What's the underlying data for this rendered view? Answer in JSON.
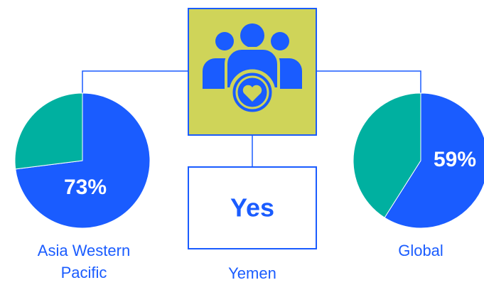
{
  "chart_data": [
    {
      "type": "pie",
      "label": "Asia Western Pacific",
      "values": [
        73,
        27
      ],
      "value_labels": [
        "73%",
        null
      ],
      "colors": [
        "#1a5cff",
        "#00b0a0"
      ]
    },
    {
      "type": "pie",
      "label": "Global",
      "values": [
        59,
        41
      ],
      "value_labels": [
        "59%",
        null
      ],
      "colors": [
        "#1a5cff",
        "#00b0a0"
      ]
    }
  ],
  "center": {
    "answer": "Yes",
    "label": "Yemen"
  }
}
